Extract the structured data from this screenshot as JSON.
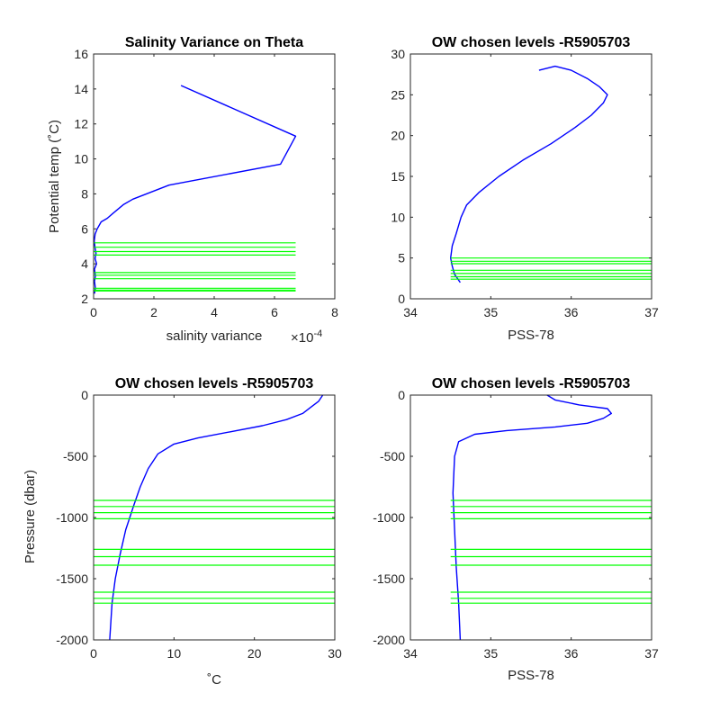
{
  "chart_data": [
    {
      "type": "line",
      "title": "Salinity Variance on Theta",
      "xlabel": "salinity variance",
      "x_exponent_label": "×10",
      "x_exponent_power": "-4",
      "ylabel": "Potential temp (˚C)",
      "xlim": [
        0,
        8
      ],
      "ylim": [
        2,
        16
      ],
      "xticks": [
        0,
        2,
        4,
        6,
        8
      ],
      "yticks": [
        2,
        4,
        6,
        8,
        10,
        12,
        14,
        16
      ],
      "grid": false,
      "series": [
        {
          "color": "#0000ff",
          "points": [
            [
              2.9,
              14.2
            ],
            [
              6.7,
              11.3
            ],
            [
              6.2,
              9.7
            ],
            [
              2.5,
              8.5
            ],
            [
              1.3,
              7.7
            ],
            [
              1.0,
              7.4
            ],
            [
              0.65,
              6.9
            ],
            [
              0.45,
              6.6
            ],
            [
              0.25,
              6.4
            ],
            [
              0.12,
              6.0
            ],
            [
              0.05,
              5.7
            ],
            [
              0.02,
              5.3
            ],
            [
              0.05,
              4.9
            ],
            [
              0.08,
              4.6
            ],
            [
              0.05,
              4.3
            ],
            [
              0.1,
              4.0
            ],
            [
              0.03,
              3.7
            ],
            [
              0.06,
              3.3
            ],
            [
              0.03,
              3.0
            ],
            [
              0.06,
              2.6
            ],
            [
              0.03,
              2.3
            ]
          ]
        }
      ],
      "level_lines": {
        "color": "#00ff00",
        "values": [
          5.2,
          4.95,
          4.7,
          4.5,
          3.5,
          3.35,
          3.15,
          2.6,
          2.5,
          2.45
        ],
        "x_extent": [
          0,
          6.7
        ]
      }
    },
    {
      "type": "line",
      "title": "OW chosen levels -R5905703",
      "xlabel": "PSS-78",
      "ylabel": "",
      "xlim": [
        34,
        37
      ],
      "ylim": [
        0,
        30
      ],
      "xticks": [
        34,
        35,
        36,
        37
      ],
      "yticks": [
        0,
        5,
        10,
        15,
        20,
        25,
        30
      ],
      "grid": false,
      "series": [
        {
          "color": "#0000ff",
          "points": [
            [
              34.62,
              2.0
            ],
            [
              34.55,
              3.0
            ],
            [
              34.52,
              4.0
            ],
            [
              34.5,
              5.0
            ],
            [
              34.52,
              6.5
            ],
            [
              34.57,
              8.0
            ],
            [
              34.63,
              10.0
            ],
            [
              34.7,
              11.5
            ],
            [
              34.85,
              13.0
            ],
            [
              35.1,
              15.0
            ],
            [
              35.4,
              17.0
            ],
            [
              35.75,
              19.0
            ],
            [
              36.05,
              21.0
            ],
            [
              36.25,
              22.5
            ],
            [
              36.4,
              24.0
            ],
            [
              36.45,
              25.0
            ],
            [
              36.35,
              26.0
            ],
            [
              36.2,
              27.0
            ],
            [
              36.0,
              28.0
            ],
            [
              35.8,
              28.5
            ],
            [
              35.6,
              28.0
            ]
          ]
        }
      ],
      "level_lines": {
        "color": "#00ff00",
        "values": [
          5.0,
          4.6,
          4.3,
          3.5,
          3.1,
          2.7,
          2.4
        ],
        "x_extent": [
          34.5,
          37
        ]
      }
    },
    {
      "type": "line",
      "title": "OW chosen levels -R5905703",
      "xlabel": "˚C",
      "ylabel": "Pressure (dbar)",
      "xlim": [
        0,
        30
      ],
      "ylim": [
        -2000,
        0
      ],
      "xticks": [
        0,
        10,
        20,
        30
      ],
      "yticks": [
        -2000,
        -1500,
        -1000,
        -500,
        0
      ],
      "grid": false,
      "series": [
        {
          "color": "#0000ff",
          "points": [
            [
              2.0,
              -2000
            ],
            [
              2.3,
              -1700
            ],
            [
              2.7,
              -1500
            ],
            [
              3.3,
              -1300
            ],
            [
              4.0,
              -1100
            ],
            [
              5.0,
              -900
            ],
            [
              5.8,
              -750
            ],
            [
              6.8,
              -600
            ],
            [
              8.0,
              -480
            ],
            [
              10.0,
              -400
            ],
            [
              13.0,
              -350
            ],
            [
              17.0,
              -300
            ],
            [
              21.0,
              -250
            ],
            [
              24.0,
              -200
            ],
            [
              26.0,
              -150
            ],
            [
              27.0,
              -100
            ],
            [
              28.0,
              -50
            ],
            [
              28.5,
              0
            ]
          ]
        }
      ],
      "level_lines": {
        "color": "#00ff00",
        "values": [
          -860,
          -910,
          -960,
          -1010,
          -1260,
          -1320,
          -1390,
          -1610,
          -1660,
          -1700
        ],
        "x_extent": [
          0,
          30
        ]
      }
    },
    {
      "type": "line",
      "title": "OW chosen levels -R5905703",
      "xlabel": "PSS-78",
      "ylabel": "",
      "xlim": [
        34,
        37
      ],
      "ylim": [
        -2000,
        0
      ],
      "xticks": [
        34,
        35,
        36,
        37
      ],
      "yticks": [
        -2000,
        -1500,
        -1000,
        -500,
        0
      ],
      "grid": false,
      "series": [
        {
          "color": "#0000ff",
          "points": [
            [
              34.62,
              -2000
            ],
            [
              34.6,
              -1700
            ],
            [
              34.57,
              -1400
            ],
            [
              34.55,
              -1100
            ],
            [
              34.53,
              -800
            ],
            [
              34.55,
              -500
            ],
            [
              34.6,
              -380
            ],
            [
              34.8,
              -320
            ],
            [
              35.2,
              -290
            ],
            [
              35.8,
              -260
            ],
            [
              36.2,
              -230
            ],
            [
              36.4,
              -190
            ],
            [
              36.5,
              -150
            ],
            [
              36.45,
              -110
            ],
            [
              36.1,
              -80
            ],
            [
              35.8,
              -40
            ],
            [
              35.7,
              0
            ]
          ]
        }
      ],
      "level_lines": {
        "color": "#00ff00",
        "values": [
          -860,
          -910,
          -960,
          -1010,
          -1260,
          -1320,
          -1390,
          -1610,
          -1660,
          -1700
        ],
        "x_extent": [
          34.5,
          37
        ]
      }
    }
  ]
}
